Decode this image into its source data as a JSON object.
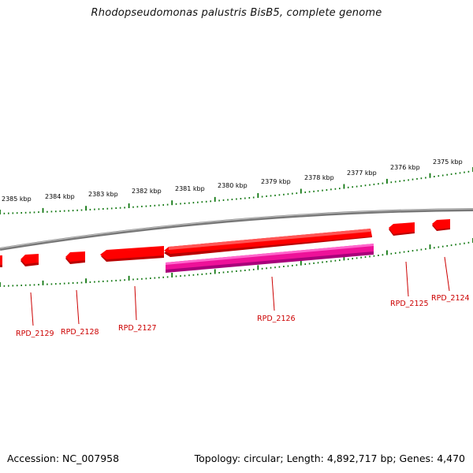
{
  "title": "Rhodopseudomonas palustris BisB5, complete genome",
  "footer": {
    "accession": "Accession: NC_007958",
    "info": "Topology: circular; Length: 4,892,717 bp; Genes: 4,470"
  },
  "colors": {
    "gene": "#ff0000",
    "gene_dark": "#b80000",
    "rna": "#ee1199",
    "tick": "#117711",
    "label": "#cc0000",
    "backbone": "#888888"
  },
  "kbp_ticks": [
    "2385 kbp",
    "2384 kbp",
    "2383 kbp",
    "2382 kbp",
    "2381 kbp",
    "2380 kbp",
    "2379 kbp",
    "2378 kbp",
    "2377 kbp",
    "2376 kbp",
    "2375 kbp"
  ],
  "genes": [
    {
      "label": "RPD_2129",
      "strand": "-",
      "kind": "gene"
    },
    {
      "label": "RPD_2128",
      "strand": "-",
      "kind": "gene"
    },
    {
      "label": "RPD_2127",
      "strand": "-",
      "kind": "gene"
    },
    {
      "label": "RPD_2126",
      "strand": "+",
      "kind": "rna"
    },
    {
      "label": "RPD_2125",
      "strand": "-",
      "kind": "gene"
    },
    {
      "label": "RPD_2124",
      "strand": "-",
      "kind": "gene"
    }
  ]
}
